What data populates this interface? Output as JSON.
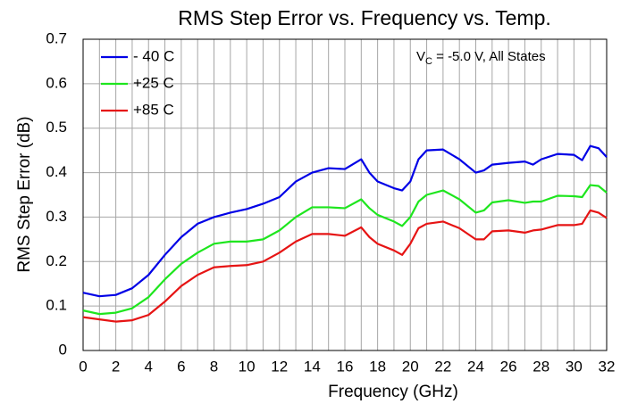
{
  "chart_data": {
    "type": "line",
    "title": "RMS Step Error vs. Frequency vs. Temp.",
    "annotation": {
      "main": "V",
      "subscript": "C",
      "rest": " = -5.0 V, All States"
    },
    "x_label": "Frequency (GHz)",
    "y_label": "RMS Step Error (dB)",
    "x": [
      0,
      1,
      2,
      3,
      4,
      5,
      6,
      7,
      8,
      9,
      10,
      11,
      12,
      13,
      14,
      15,
      16,
      17,
      17.5,
      18,
      19,
      19.5,
      20,
      20.5,
      21,
      22,
      23,
      24,
      24.5,
      25,
      26,
      27,
      27.5,
      28,
      29,
      30,
      30.5,
      31,
      31.5,
      32
    ],
    "series": [
      {
        "name": "- 40 C",
        "color": "#0000e6",
        "values": [
          0.13,
          0.122,
          0.125,
          0.14,
          0.17,
          0.215,
          0.255,
          0.285,
          0.3,
          0.31,
          0.318,
          0.33,
          0.345,
          0.38,
          0.4,
          0.41,
          0.408,
          0.43,
          0.4,
          0.38,
          0.365,
          0.36,
          0.38,
          0.43,
          0.45,
          0.452,
          0.43,
          0.4,
          0.405,
          0.418,
          0.422,
          0.425,
          0.418,
          0.43,
          0.442,
          0.44,
          0.428,
          0.46,
          0.455,
          0.435
        ]
      },
      {
        "name": "+25 C",
        "color": "#1ee61e",
        "values": [
          0.09,
          0.082,
          0.085,
          0.095,
          0.12,
          0.16,
          0.195,
          0.22,
          0.24,
          0.245,
          0.245,
          0.25,
          0.27,
          0.3,
          0.322,
          0.322,
          0.32,
          0.34,
          0.32,
          0.305,
          0.29,
          0.28,
          0.3,
          0.335,
          0.35,
          0.36,
          0.34,
          0.31,
          0.315,
          0.333,
          0.338,
          0.332,
          0.335,
          0.335,
          0.348,
          0.347,
          0.345,
          0.372,
          0.37,
          0.355
        ]
      },
      {
        "name": "+85 C",
        "color": "#e61414",
        "values": [
          0.075,
          0.07,
          0.065,
          0.068,
          0.08,
          0.11,
          0.145,
          0.17,
          0.187,
          0.19,
          0.192,
          0.2,
          0.22,
          0.245,
          0.262,
          0.262,
          0.258,
          0.277,
          0.255,
          0.24,
          0.225,
          0.215,
          0.24,
          0.275,
          0.285,
          0.29,
          0.275,
          0.25,
          0.25,
          0.268,
          0.27,
          0.265,
          0.27,
          0.272,
          0.282,
          0.282,
          0.285,
          0.315,
          0.31,
          0.298
        ]
      }
    ],
    "xlim": [
      0,
      32
    ],
    "xticks": [
      0,
      2,
      4,
      6,
      8,
      10,
      12,
      14,
      16,
      18,
      20,
      22,
      24,
      26,
      28,
      30,
      32
    ],
    "xgrid": [
      0,
      1,
      2,
      3,
      4,
      5,
      6,
      7,
      8,
      9,
      10,
      11,
      12,
      13,
      14,
      15,
      16,
      17,
      18,
      19,
      20,
      21,
      22,
      23,
      24,
      25,
      26,
      27,
      28,
      29,
      30,
      31,
      32
    ],
    "ylim": [
      0,
      0.7
    ],
    "yticks": [
      0,
      0.1,
      0.2,
      0.3,
      0.4,
      0.5,
      0.6,
      0.7
    ],
    "grid": true,
    "legend": "upper left"
  }
}
